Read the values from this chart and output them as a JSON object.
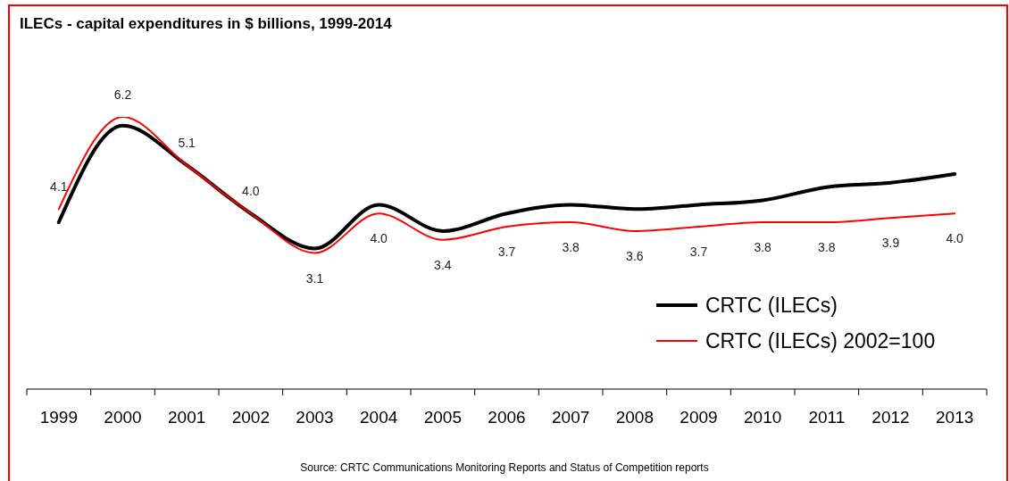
{
  "chart_data": {
    "type": "line",
    "title": "ILECs - capital expenditures in $ billions, 1999-2014",
    "categories": [
      "1999",
      "2000",
      "2001",
      "2002",
      "2003",
      "2004",
      "2005",
      "2006",
      "2007",
      "2008",
      "2009",
      "2010",
      "2011",
      "2012",
      "2013"
    ],
    "series": [
      {
        "name": "CRTC (ILECs)",
        "color": "#000000",
        "values": [
          3.8,
          6.0,
          5.1,
          4.0,
          3.2,
          4.2,
          3.6,
          4.0,
          4.2,
          4.1,
          4.2,
          4.3,
          4.6,
          4.7,
          4.9
        ]
      },
      {
        "name": "CRTC (ILECs) 2002=100",
        "color": "#ff0000",
        "values": [
          4.1,
          6.2,
          5.1,
          4.0,
          3.1,
          4.0,
          3.4,
          3.7,
          3.8,
          3.6,
          3.7,
          3.8,
          3.8,
          3.9,
          4.0
        ],
        "value_labels": [
          "4.1",
          "6.2",
          "5.1",
          "4.0",
          "3.1",
          "4.0",
          "3.4",
          "3.7",
          "3.8",
          "3.6",
          "3.7",
          "3.8",
          "3.8",
          "3.9",
          "4.0"
        ]
      }
    ],
    "tick_labels": "x",
    "legend": "bottom right",
    "marker": "none",
    "annotations": [
      "Source: CRTC Communications Monitoring Reports and Status of Competition reports"
    ]
  }
}
